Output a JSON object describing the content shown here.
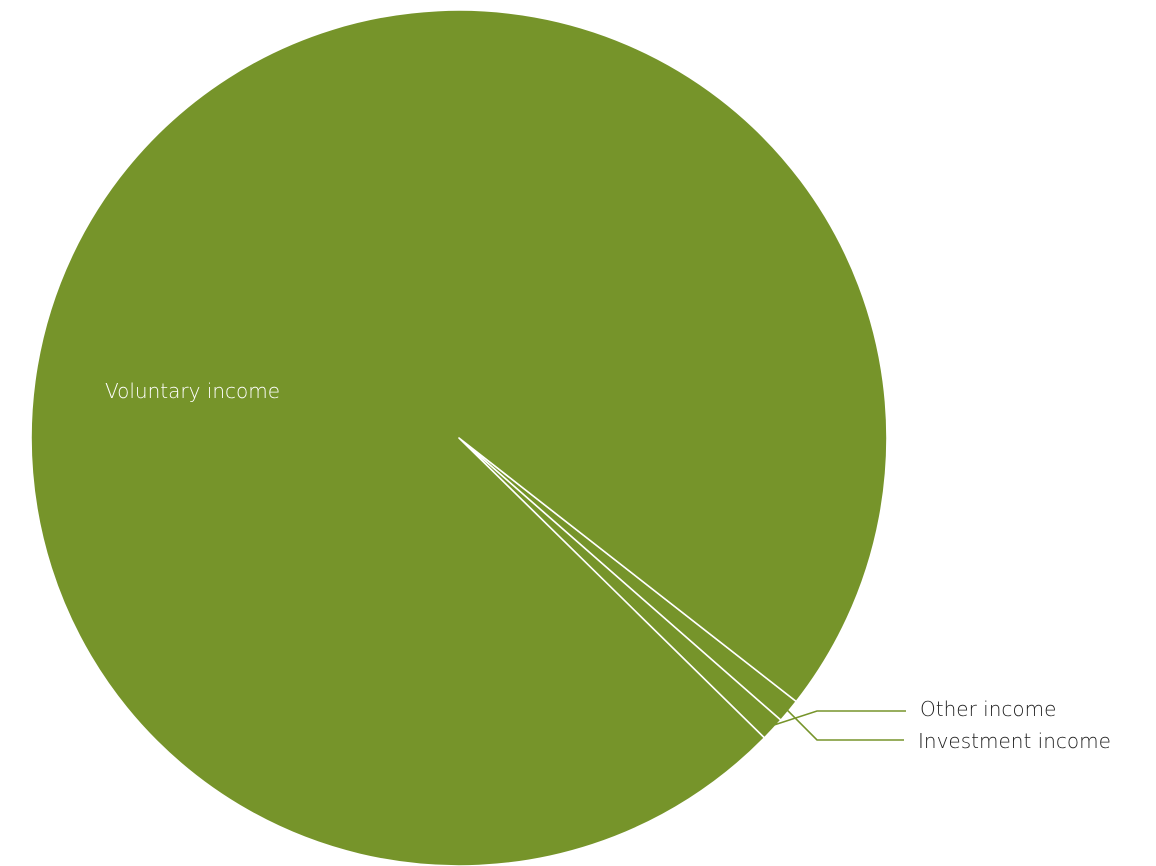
{
  "chart_data": {
    "type": "pie",
    "title": "",
    "slices": [
      {
        "label": "Voluntary income",
        "value": 98.2
      },
      {
        "label": "Other income",
        "value": 0.9
      },
      {
        "label": "Investment income",
        "value": 0.9
      }
    ],
    "colors": {
      "slice_fill": "#76942a",
      "slice_border": "#ffffff",
      "inside_label": "#ffffff",
      "leader_line": "#76942a",
      "outside_label": "#222222"
    }
  }
}
